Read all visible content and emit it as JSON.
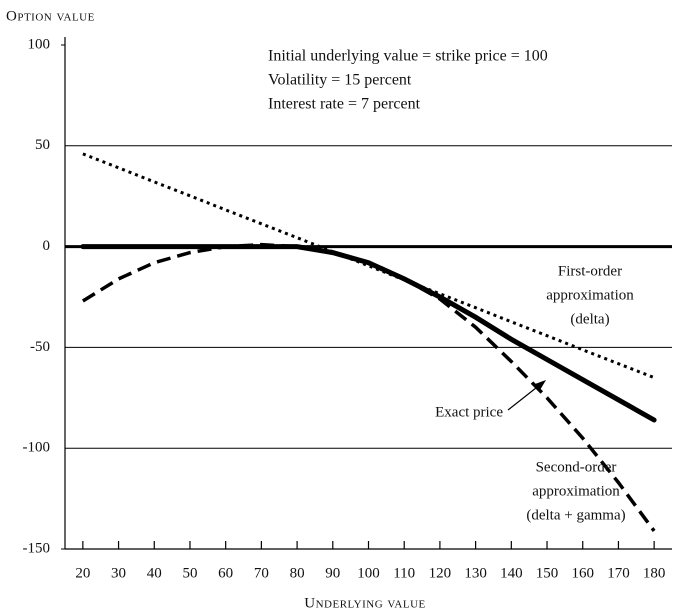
{
  "chart_data": {
    "type": "line",
    "y_axis_label": "Option value",
    "x_axis_label": "Underlying value",
    "xlim": [
      15,
      185
    ],
    "xticks": [
      20,
      30,
      40,
      50,
      60,
      70,
      80,
      90,
      100,
      110,
      120,
      130,
      140,
      150,
      160,
      170,
      180
    ],
    "ylim": [
      -150,
      100
    ],
    "yticks": [
      -150,
      -100,
      -50,
      0,
      50,
      100
    ],
    "grid": true,
    "x": [
      20,
      30,
      40,
      50,
      60,
      70,
      80,
      90,
      100,
      110,
      120,
      130,
      140,
      150,
      160,
      170,
      180
    ],
    "series": [
      {
        "name": "Exact price",
        "color": "#000000",
        "style": "solid",
        "values": [
          0,
          0,
          0,
          0,
          0,
          0,
          0,
          -3,
          -8,
          -16,
          -25,
          -35,
          -46,
          -56,
          -66,
          -76,
          -86
        ]
      },
      {
        "name": "First-order approximation (delta)",
        "color": "#000000",
        "style": "dotted",
        "values": [
          46,
          39.1,
          32.1,
          25.2,
          18.2,
          11.3,
          4.4,
          -2.6,
          -9.5,
          -16.5,
          -23.4,
          -30.3,
          -37.3,
          -44.2,
          -51.2,
          -58.1,
          -65
        ]
      },
      {
        "name": "Second-order approximation (delta + gamma)",
        "color": "#000000",
        "style": "dashed",
        "values": [
          -27,
          -16,
          -8,
          -3,
          0,
          1,
          0,
          -3,
          -8,
          -16,
          -26,
          -40,
          -57,
          -75,
          -95,
          -117,
          -141
        ]
      }
    ],
    "notes": [
      "Initial underlying value = strike price = 100",
      "Volatility = 15 percent",
      "Interest rate = 7 percent"
    ],
    "labels": [
      {
        "lines": [
          "First-order",
          "approximation",
          "(delta)"
        ]
      },
      {
        "lines": [
          "Exact price"
        ]
      },
      {
        "lines": [
          "Second-order",
          "approximation",
          "(delta + gamma)"
        ]
      }
    ]
  }
}
